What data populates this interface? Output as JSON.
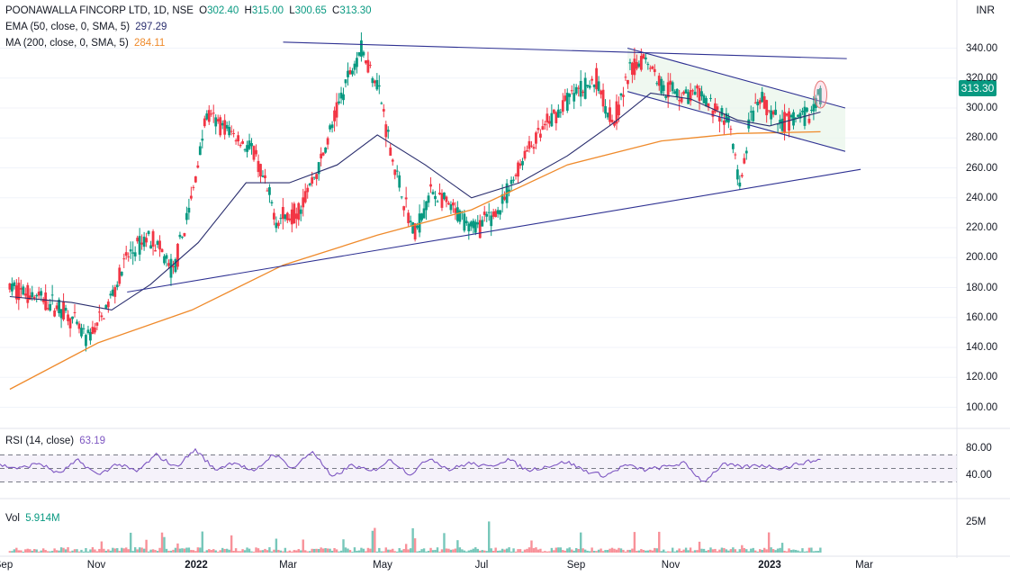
{
  "header": {
    "symbol": "POONAWALLA FINCORP LTD, 1D, NSE",
    "o_label": "O",
    "o_value": "302.40",
    "h_label": "H",
    "h_value": "315.00",
    "l_label": "L",
    "l_value": "300.65",
    "c_label": "C",
    "c_value": "313.30"
  },
  "currency": "INR",
  "indicators": {
    "ema_label": "EMA (50, close, 0, SMA, 5)",
    "ema_value": "297.29",
    "ma_label": "MA (200, close, 0, SMA, 5)",
    "ma_value": "284.11",
    "rsi_label": "RSI (14, close)",
    "rsi_value": "63.19",
    "vol_label": "Vol",
    "vol_value": "5.914M"
  },
  "last_price_tag": "313.30",
  "colors": {
    "up": "#089981",
    "down": "#f23645",
    "ema": "#2a2e6e",
    "ma": "#ef8a2b",
    "rsi": "#7e57c2",
    "trend": "#2e3192"
  },
  "chart_data": {
    "type": "candlestick",
    "price_axis": {
      "ticks": [
        "340.00",
        "320.00",
        "300.00",
        "280.00",
        "260.00",
        "240.00",
        "220.00",
        "200.00",
        "180.00",
        "160.00",
        "140.00",
        "120.00",
        "100.00"
      ],
      "range": [
        93,
        350
      ]
    },
    "rsi_axis": {
      "ticks": [
        "80.00",
        "40.00"
      ],
      "bands": [
        70,
        50,
        30
      ]
    },
    "volume_axis": {
      "ticks": [
        "25M"
      ]
    },
    "time_axis": [
      "Sep",
      "Nov",
      "2022",
      "Mar",
      "May",
      "Jul",
      "Sep",
      "Nov",
      "2023",
      "Mar"
    ],
    "time_axis_bold": [
      "2022",
      "2023"
    ],
    "close_path": [
      [
        "2021-09-05",
        180
      ],
      [
        "2021-09-20",
        175
      ],
      [
        "2021-10-10",
        165
      ],
      [
        "2021-10-25",
        145
      ],
      [
        "2021-11-05",
        162
      ],
      [
        "2021-11-20",
        200
      ],
      [
        "2021-12-05",
        215
      ],
      [
        "2021-12-20",
        190
      ],
      [
        "2022-01-01",
        240
      ],
      [
        "2022-01-10",
        295
      ],
      [
        "2022-01-25",
        285
      ],
      [
        "2022-02-10",
        270
      ],
      [
        "2022-02-25",
        225
      ],
      [
        "2022-03-10",
        230
      ],
      [
        "2022-03-25",
        262
      ],
      [
        "2022-04-10",
        315
      ],
      [
        "2022-04-20",
        340
      ],
      [
        "2022-05-01",
        318
      ],
      [
        "2022-05-12",
        260
      ],
      [
        "2022-05-25",
        215
      ],
      [
        "2022-06-05",
        245
      ],
      [
        "2022-06-20",
        230
      ],
      [
        "2022-07-05",
        220
      ],
      [
        "2022-07-20",
        233
      ],
      [
        "2022-08-05",
        270
      ],
      [
        "2022-08-20",
        290
      ],
      [
        "2022-09-05",
        310
      ],
      [
        "2022-09-20",
        318
      ],
      [
        "2022-10-01",
        290
      ],
      [
        "2022-10-12",
        325
      ],
      [
        "2022-10-22",
        335
      ],
      [
        "2022-11-01",
        315
      ],
      [
        "2022-11-12",
        310
      ],
      [
        "2022-11-25",
        308
      ],
      [
        "2022-12-05",
        300
      ],
      [
        "2022-12-15",
        290
      ],
      [
        "2022-12-22",
        244
      ],
      [
        "2022-12-28",
        290
      ],
      [
        "2023-01-05",
        305
      ],
      [
        "2023-01-15",
        290
      ],
      [
        "2023-01-25",
        292
      ],
      [
        "2023-02-05",
        295
      ],
      [
        "2023-02-12",
        313.3
      ]
    ],
    "ema50_path": [
      [
        "2021-09-05",
        174
      ],
      [
        "2021-10-15",
        170
      ],
      [
        "2021-11-10",
        165
      ],
      [
        "2021-12-05",
        182
      ],
      [
        "2022-01-05",
        210
      ],
      [
        "2022-02-05",
        250
      ],
      [
        "2022-03-05",
        250
      ],
      [
        "2022-04-05",
        262
      ],
      [
        "2022-05-01",
        282
      ],
      [
        "2022-06-01",
        262
      ],
      [
        "2022-07-01",
        240
      ],
      [
        "2022-08-01",
        250
      ],
      [
        "2022-09-01",
        268
      ],
      [
        "2022-10-01",
        290
      ],
      [
        "2022-10-25",
        310
      ],
      [
        "2022-11-20",
        306
      ],
      [
        "2022-12-20",
        292
      ],
      [
        "2023-01-10",
        288
      ],
      [
        "2023-02-12",
        297.29
      ]
    ],
    "ma200_path": [
      [
        "2021-09-05",
        112
      ],
      [
        "2021-11-01",
        143
      ],
      [
        "2022-01-01",
        165
      ],
      [
        "2022-03-01",
        195
      ],
      [
        "2022-05-01",
        215
      ],
      [
        "2022-07-01",
        232
      ],
      [
        "2022-09-01",
        262
      ],
      [
        "2022-11-01",
        278
      ],
      [
        "2022-12-20",
        283
      ],
      [
        "2023-02-12",
        284.11
      ]
    ],
    "rsi_series": [
      55,
      50,
      58,
      42,
      62,
      40,
      57,
      45,
      70,
      52,
      78,
      48,
      60,
      44,
      72,
      50,
      76,
      36,
      55,
      45,
      63,
      41,
      66,
      48,
      58,
      52,
      64,
      47,
      53,
      60,
      46,
      39,
      55,
      48,
      52,
      58,
      30,
      56,
      52,
      55,
      50,
      58,
      63.19
    ]
  }
}
